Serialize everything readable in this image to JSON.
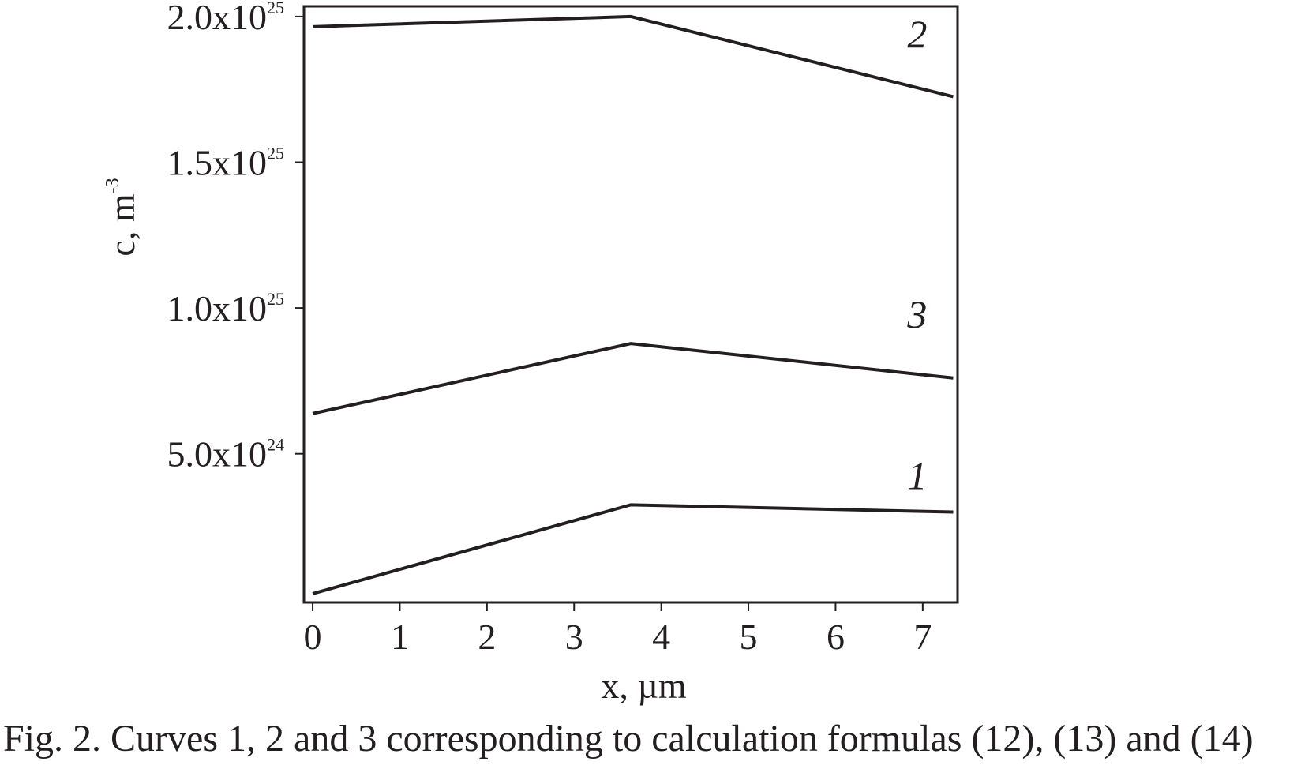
{
  "caption": "Fig. 2. Curves 1, 2 and 3 corresponding to calculation formulas (12), (13) and (14)",
  "colors": {
    "ink": "#231f20",
    "background": "#ffffff"
  },
  "chart_data": {
    "type": "line",
    "xlabel": "x, µm",
    "ylabel": {
      "base": "c, m",
      "superscript": "-3"
    },
    "xlim": [
      -0.1,
      7.4
    ],
    "ylim": [
      -100000000000000000000000,
      20350000000000000000000000
    ],
    "x_ticks": [
      {
        "value": 0,
        "label": "0"
      },
      {
        "value": 1,
        "label": "1"
      },
      {
        "value": 2,
        "label": "2"
      },
      {
        "value": 3,
        "label": "3"
      },
      {
        "value": 4,
        "label": "4"
      },
      {
        "value": 5,
        "label": "5"
      },
      {
        "value": 6,
        "label": "6"
      },
      {
        "value": 7,
        "label": "7"
      }
    ],
    "y_ticks": [
      {
        "value": 5000000000000000000000000,
        "mantissa": "5.0x10",
        "exponent": "24"
      },
      {
        "value": 10000000000000000000000000,
        "mantissa": "1.0x10",
        "exponent": "25"
      },
      {
        "value": 15000000000000000000000000,
        "mantissa": "1.5x10",
        "exponent": "25"
      },
      {
        "value": 20000000000000000000000000,
        "mantissa": "2.0x10",
        "exponent": "25"
      }
    ],
    "grid": false,
    "series": [
      {
        "name": "1",
        "x": [
          0,
          3.65,
          7.35
        ],
        "y": [
          200000000000000000000000,
          3250000000000000000000000,
          3000000000000000000000000
        ]
      },
      {
        "name": "2",
        "x": [
          0,
          3.65,
          7.35
        ],
        "y": [
          19650000000000000000000000,
          20000000000000000000000000,
          17250000000000000000000000
        ]
      },
      {
        "name": "3",
        "x": [
          0,
          3.65,
          7.35
        ],
        "y": [
          6380000000000000000000000,
          8780000000000000000000000,
          7600000000000000000000000
        ]
      }
    ]
  }
}
